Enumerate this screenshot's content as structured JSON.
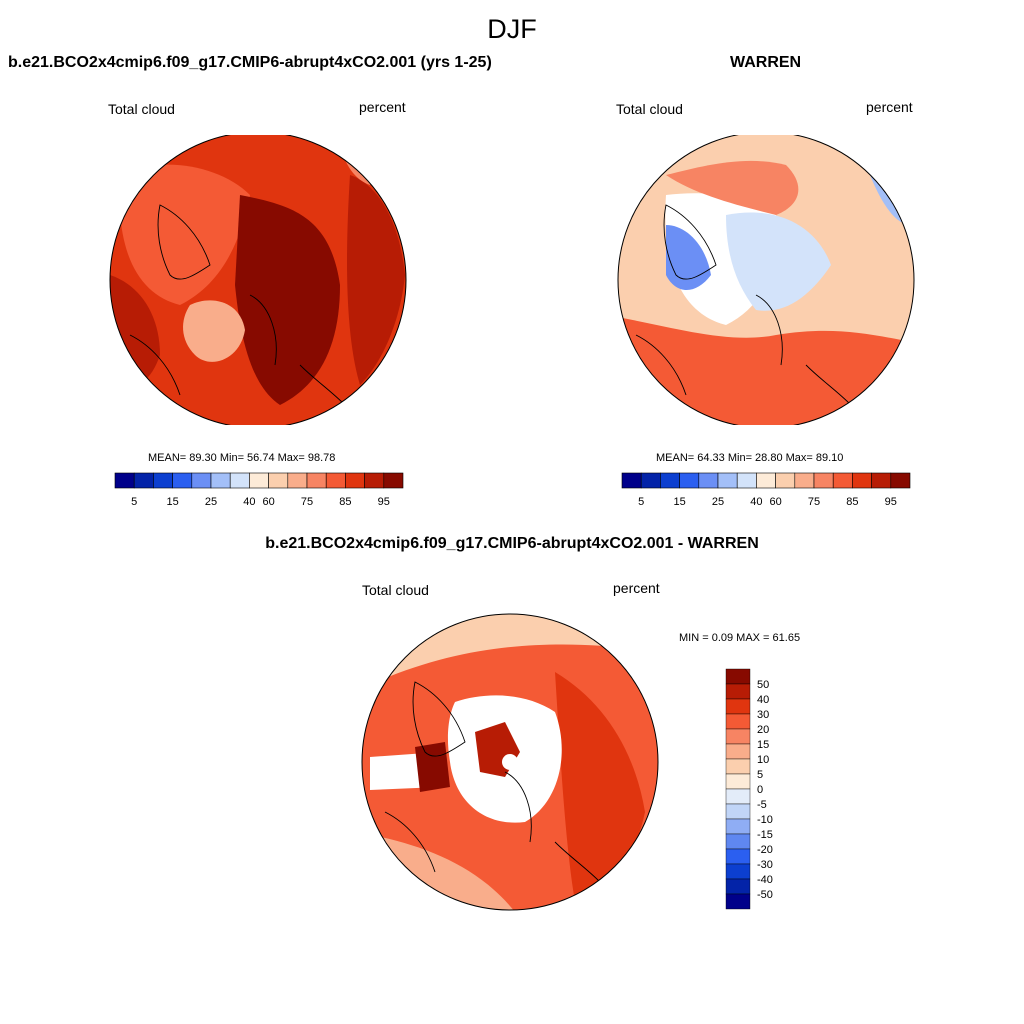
{
  "title": "DJF",
  "panels": [
    {
      "id": "model",
      "title": "b.e21.BCO2x4cmip6.f09_g17.CMIP6-abrupt4xCO2.001 (yrs 1-25)",
      "variable": "Total cloud",
      "units": "percent",
      "stats_text": "MEAN=  89.30  Min=  56.74  Max=  98.78",
      "stats": {
        "mean": 89.3,
        "min": 56.74,
        "max": 98.78
      }
    },
    {
      "id": "obs",
      "title": "WARREN",
      "variable": "Total cloud",
      "units": "percent",
      "stats_text": "MEAN=  64.33  Min=  28.80  Max=  89.10",
      "stats": {
        "mean": 64.33,
        "min": 28.8,
        "max": 89.1
      }
    },
    {
      "id": "diff",
      "title": "b.e21.BCO2x4cmip6.f09_g17.CMIP6-abrupt4xCO2.001 - WARREN",
      "variable": "Total cloud",
      "units": "percent",
      "stats_text": "MIN =   0.09 MAX =  61.65",
      "stats": {
        "min": 0.09,
        "max": 61.65
      }
    }
  ],
  "abs_colorbar": {
    "colors": [
      "#00008a",
      "#0323a8",
      "#0c3fd0",
      "#2b5ff0",
      "#6b8ff5",
      "#a3bff8",
      "#d3e3fa",
      "#fdebd8",
      "#fbcfae",
      "#f9ad8b",
      "#f78463",
      "#f45a35",
      "#e0350f",
      "#b71c05",
      "#870a00"
    ],
    "labels": [
      "5",
      "15",
      "25",
      "40",
      "60",
      "75",
      "85",
      "95"
    ]
  },
  "diff_colorbar": {
    "colors": [
      "#870a00",
      "#b71c05",
      "#e0350f",
      "#f45a35",
      "#f78463",
      "#f9ad8b",
      "#fbcfae",
      "#fdebd8",
      "#e3ecf9",
      "#c1d5f7",
      "#8fadf4",
      "#5f87f0",
      "#2b5ff0",
      "#0c3fd0",
      "#0323a8",
      "#00008a"
    ],
    "labels": [
      "50",
      "40",
      "30",
      "20",
      "15",
      "10",
      "5",
      "0",
      "-5",
      "-10",
      "-15",
      "-20",
      "-30",
      "-40",
      "-50"
    ]
  }
}
